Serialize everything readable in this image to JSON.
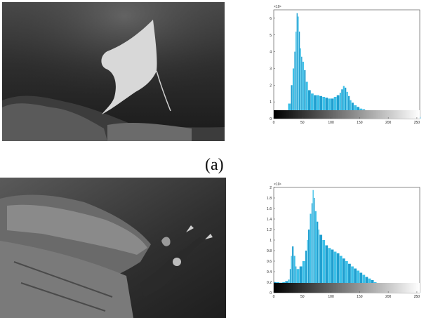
{
  "panel_label": "(a)",
  "photos": [
    {
      "subject": "manta-ray-underwater"
    },
    {
      "subject": "diver-at-shipwreck"
    }
  ],
  "chart_data": [
    {
      "type": "bar",
      "xlim": [
        0,
        255
      ],
      "ylim": [
        0,
        6.5
      ],
      "scale_label": "×10⁴",
      "xticks": [
        "0",
        "50",
        "100",
        "150",
        "200",
        "250"
      ],
      "yticks": [
        "0",
        "1",
        "2",
        "3",
        "4",
        "5",
        "6"
      ],
      "bar_color": "#1f9fd0",
      "x": [
        0,
        5,
        10,
        15,
        20,
        25,
        30,
        33,
        36,
        38,
        40,
        42,
        44,
        46,
        48,
        50,
        53,
        56,
        60,
        65,
        70,
        75,
        80,
        85,
        90,
        95,
        100,
        105,
        110,
        115,
        118,
        121,
        124,
        127,
        130,
        133,
        136,
        140,
        145,
        150,
        155,
        160,
        165,
        170,
        175,
        180,
        185,
        190,
        195,
        200,
        205,
        210,
        215,
        220,
        225,
        230,
        235,
        240,
        245,
        250,
        255
      ],
      "values": [
        0.05,
        0.08,
        0.12,
        0.2,
        0.4,
        0.9,
        2.0,
        3.0,
        4.0,
        5.2,
        6.3,
        6.1,
        5.2,
        4.2,
        3.7,
        3.4,
        2.9,
        2.2,
        1.7,
        1.5,
        1.4,
        1.4,
        1.35,
        1.3,
        1.25,
        1.2,
        1.2,
        1.3,
        1.4,
        1.55,
        1.75,
        1.95,
        1.85,
        1.6,
        1.35,
        1.1,
        0.95,
        0.8,
        0.7,
        0.6,
        0.55,
        0.5,
        0.48,
        0.45,
        0.43,
        0.4,
        0.38,
        0.35,
        0.33,
        0.3,
        0.3,
        0.28,
        0.27,
        0.26,
        0.27,
        0.33,
        0.28,
        0.2,
        0.15,
        0.12,
        0.1
      ]
    },
    {
      "type": "bar",
      "xlim": [
        0,
        255
      ],
      "ylim": [
        0,
        2.0
      ],
      "scale_label": "×10⁴",
      "xticks": [
        "0",
        "50",
        "100",
        "150",
        "200",
        "250"
      ],
      "yticks": [
        "0",
        "0.2",
        "0.4",
        "0.6",
        "0.8",
        "1",
        "1.2",
        "1.4",
        "1.6",
        "1.8",
        "2"
      ],
      "bar_color": "#1f9fd0",
      "x": [
        0,
        5,
        10,
        15,
        20,
        25,
        28,
        30,
        32,
        35,
        38,
        40,
        45,
        50,
        55,
        58,
        60,
        63,
        66,
        68,
        70,
        72,
        75,
        78,
        80,
        85,
        90,
        95,
        100,
        105,
        110,
        115,
        120,
        125,
        130,
        135,
        140,
        145,
        150,
        155,
        160,
        165,
        170,
        175,
        180,
        185,
        190,
        195,
        200,
        205,
        210,
        215,
        220,
        225,
        230,
        235,
        240,
        245,
        250,
        255
      ],
      "values": [
        0.2,
        0.2,
        0.19,
        0.2,
        0.22,
        0.25,
        0.45,
        0.7,
        0.88,
        0.7,
        0.5,
        0.45,
        0.5,
        0.6,
        0.8,
        1.0,
        1.2,
        1.5,
        1.7,
        1.95,
        1.8,
        1.55,
        1.35,
        1.2,
        1.1,
        1.0,
        0.9,
        0.85,
        0.82,
        0.78,
        0.75,
        0.7,
        0.65,
        0.6,
        0.55,
        0.5,
        0.46,
        0.42,
        0.38,
        0.34,
        0.3,
        0.27,
        0.24,
        0.2,
        0.17,
        0.14,
        0.12,
        0.09,
        0.07,
        0.05,
        0.04,
        0.03,
        0.02,
        0.015,
        0.01,
        0.008,
        0.006,
        0.004,
        0.003,
        0.002
      ]
    }
  ]
}
